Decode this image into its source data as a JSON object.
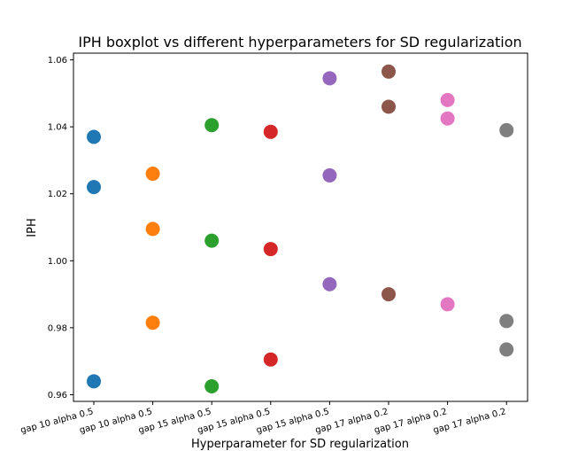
{
  "chart_data": {
    "type": "scatter",
    "title": "IPH boxplot vs different hyperparameters for SD regularization",
    "xlabel": "Hyperparameter for SD regularization",
    "ylabel": "IPH",
    "categories": [
      "gap 10 alpha 0.5",
      "gap 10 alpha 0.5",
      "gap 15 alpha 0.5",
      "gap 15 alpha 0.5",
      "gap 15 alpha 0.5",
      "gap 17 alpha 0.2",
      "gap 17 alpha 0.2",
      "gap 17 alpha 0.2"
    ],
    "ylim": [
      0.958,
      1.062
    ],
    "yticks": [
      "0.96",
      "0.98",
      "1.00",
      "1.02",
      "1.04",
      "1.06"
    ],
    "ytick_values": [
      0.96,
      0.98,
      1.0,
      1.02,
      1.04,
      1.06
    ],
    "grid": false,
    "series": [
      {
        "color": "#1f77b4",
        "values": [
          1.037,
          1.022,
          0.964
        ]
      },
      {
        "color": "#ff7f0e",
        "values": [
          1.026,
          1.0095,
          0.9815
        ]
      },
      {
        "color": "#2ca02c",
        "values": [
          1.0405,
          1.006,
          0.9625
        ]
      },
      {
        "color": "#d62728",
        "values": [
          1.0385,
          1.0035,
          0.9705
        ]
      },
      {
        "color": "#9467bd",
        "values": [
          1.0545,
          1.0255,
          0.993
        ]
      },
      {
        "color": "#8c564b",
        "values": [
          1.0565,
          1.046,
          0.99
        ]
      },
      {
        "color": "#e377c2",
        "values": [
          1.048,
          1.0425,
          0.987
        ]
      },
      {
        "color": "#7f7f7f",
        "values": [
          1.039,
          0.982,
          0.9735
        ]
      }
    ]
  }
}
